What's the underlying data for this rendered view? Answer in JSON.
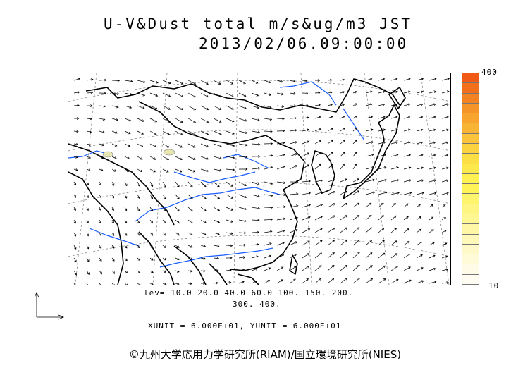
{
  "title": {
    "line1": "U-V&Dust total m/s&ug/m3 JST",
    "line2": "2013/02/06.09:00:00"
  },
  "colorbar": {
    "max_label": "400",
    "min_label": "10",
    "colors": [
      "#f05a14",
      "#f2701c",
      "#f38322",
      "#f59529",
      "#f7a52e",
      "#f8b434",
      "#fac33b",
      "#fbd240",
      "#fcde45",
      "#fde94b",
      "#fef151",
      "#fff358",
      "#fff46e",
      "#fff582",
      "#fff694",
      "#fff7a6",
      "#fff8b8",
      "#fff9c9",
      "#fffad8",
      "#fffbe6",
      "#fffdf2"
    ]
  },
  "levels": {
    "line1": "lev= 10.0 20.0 40.0 60.0 100. 150. 200.",
    "line2": "300. 400."
  },
  "units": "XUNIT = 6.000E+01, YUNIT = 6.000E+01",
  "copyright": "©九州大学応用力学研究所(RIAM)/国立環境研究所(NIES)",
  "colors": {
    "coast": "#000000",
    "river": "#1a5cff",
    "grid": "#777777",
    "dust": "#e8e6b0",
    "arrow": "#000000"
  }
}
